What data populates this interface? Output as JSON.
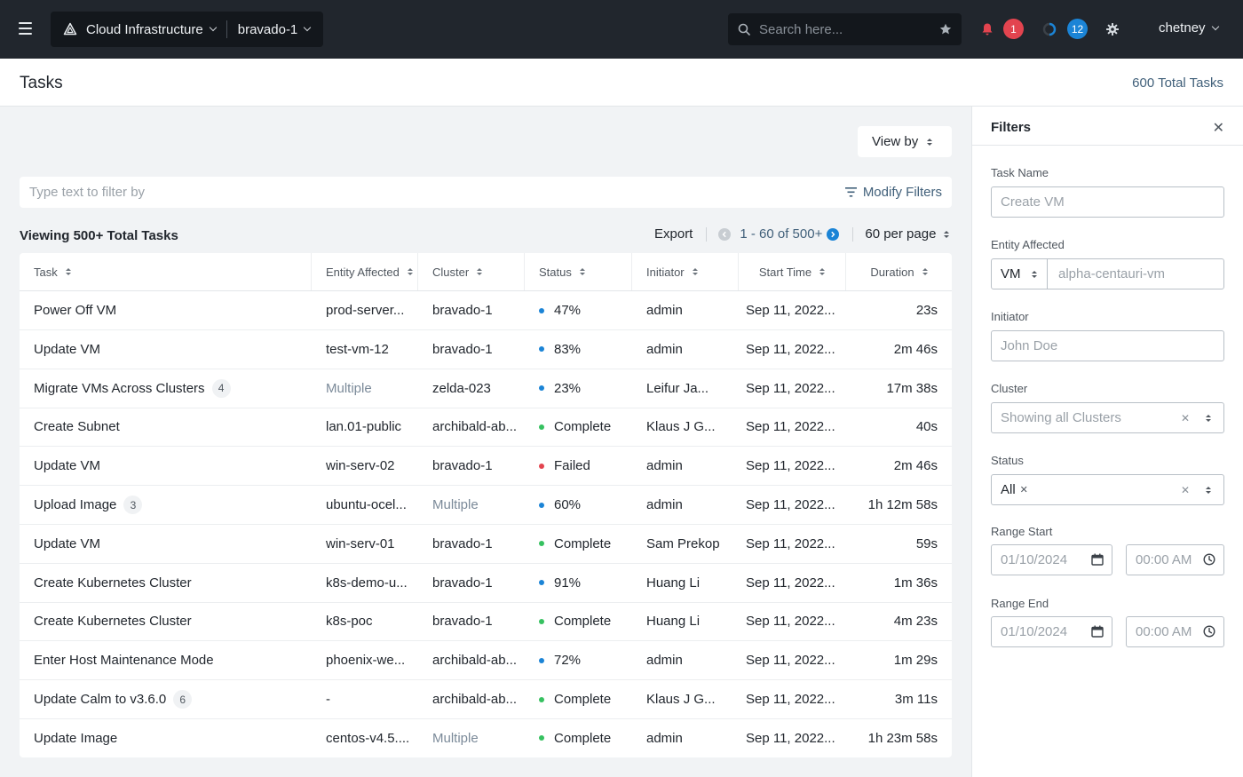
{
  "topbar": {
    "context_label": "Cloud Infrastructure",
    "cluster_label": "bravado-1",
    "search_placeholder": "Search here...",
    "alerts_count": "1",
    "tasks_count": "12",
    "username": "chetney"
  },
  "page": {
    "title": "Tasks",
    "total_tasks": "600 Total Tasks"
  },
  "toolbar": {
    "view_by": "View by",
    "filter_placeholder": "Type text to filter by",
    "modify_filters": "Modify Filters",
    "viewing": "Viewing 500+ Total Tasks",
    "export": "Export",
    "range": "1 - 60 of 500+",
    "per_page": "60 per page"
  },
  "table": {
    "columns": [
      "Task",
      "Entity Affected",
      "Cluster",
      "Status",
      "Initiator",
      "Start Time",
      "Duration"
    ],
    "rows": [
      {
        "task": "Power Off VM",
        "count": "",
        "entity": "prod-server...",
        "entity_muted": false,
        "cluster": "bravado-1",
        "cluster_muted": false,
        "status": "47%",
        "status_color": "#1b84d6",
        "initiator": "admin",
        "start": "Sep 11, 2022...",
        "duration": "23s"
      },
      {
        "task": "Update VM",
        "count": "",
        "entity": "test-vm-12",
        "entity_muted": false,
        "cluster": "bravado-1",
        "cluster_muted": false,
        "status": "83%",
        "status_color": "#1b84d6",
        "initiator": "admin",
        "start": "Sep 11, 2022...",
        "duration": "2m 46s"
      },
      {
        "task": "Migrate VMs Across Clusters",
        "count": "4",
        "entity": "Multiple",
        "entity_muted": true,
        "cluster": "zelda-023",
        "cluster_muted": false,
        "status": "23%",
        "status_color": "#1b84d6",
        "initiator": "Leifur Ja...",
        "start": "Sep 11, 2022...",
        "duration": "17m 38s"
      },
      {
        "task": "Create Subnet",
        "count": "",
        "entity": "lan.01-public",
        "entity_muted": false,
        "cluster": "archibald-ab...",
        "cluster_muted": false,
        "status": "Complete",
        "status_color": "#36c160",
        "initiator": "Klaus J G...",
        "start": "Sep 11, 2022...",
        "duration": "40s"
      },
      {
        "task": "Update VM",
        "count": "",
        "entity": "win-serv-02",
        "entity_muted": false,
        "cluster": "bravado-1",
        "cluster_muted": false,
        "status": "Failed",
        "status_color": "#e3444f",
        "initiator": "admin",
        "start": "Sep 11, 2022...",
        "duration": "2m 46s"
      },
      {
        "task": "Upload Image",
        "count": "3",
        "entity": "ubuntu-ocel...",
        "entity_muted": false,
        "cluster": "Multiple",
        "cluster_muted": true,
        "status": "60%",
        "status_color": "#1b84d6",
        "initiator": "admin",
        "start": "Sep 11, 2022...",
        "duration": "1h 12m 58s"
      },
      {
        "task": "Update VM",
        "count": "",
        "entity": "win-serv-01",
        "entity_muted": false,
        "cluster": "bravado-1",
        "cluster_muted": false,
        "status": "Complete",
        "status_color": "#36c160",
        "initiator": "Sam Prekop",
        "start": "Sep 11, 2022...",
        "duration": "59s"
      },
      {
        "task": "Create Kubernetes Cluster",
        "count": "",
        "entity": "k8s-demo-u...",
        "entity_muted": false,
        "cluster": "bravado-1",
        "cluster_muted": false,
        "status": "91%",
        "status_color": "#1b84d6",
        "initiator": "Huang Li",
        "start": "Sep 11, 2022...",
        "duration": "1m 36s"
      },
      {
        "task": "Create Kubernetes Cluster",
        "count": "",
        "entity": "k8s-poc",
        "entity_muted": false,
        "cluster": "bravado-1",
        "cluster_muted": false,
        "status": "Complete",
        "status_color": "#36c160",
        "initiator": "Huang Li",
        "start": "Sep 11, 2022...",
        "duration": "4m 23s"
      },
      {
        "task": "Enter Host Maintenance Mode",
        "count": "",
        "entity": "phoenix-we...",
        "entity_muted": false,
        "cluster": "archibald-ab...",
        "cluster_muted": false,
        "status": "72%",
        "status_color": "#1b84d6",
        "initiator": "admin",
        "start": "Sep 11, 2022...",
        "duration": "1m 29s"
      },
      {
        "task": "Update Calm to v3.6.0",
        "count": "6",
        "entity": "-",
        "entity_muted": false,
        "cluster": "archibald-ab...",
        "cluster_muted": false,
        "status": "Complete",
        "status_color": "#36c160",
        "initiator": "Klaus J G...",
        "start": "Sep 11, 2022...",
        "duration": "3m 11s"
      },
      {
        "task": "Update Image",
        "count": "",
        "entity": "centos-v4.5....",
        "entity_muted": false,
        "cluster": "Multiple",
        "cluster_muted": true,
        "status": "Complete",
        "status_color": "#36c160",
        "initiator": "admin",
        "start": "Sep 11, 2022...",
        "duration": "1h 23m 58s"
      }
    ]
  },
  "filters": {
    "title": "Filters",
    "task_name_label": "Task Name",
    "task_name_placeholder": "Create VM",
    "entity_label": "Entity Affected",
    "entity_type": "VM",
    "entity_placeholder": "alpha-centauri-vm",
    "initiator_label": "Initiator",
    "initiator_placeholder": "John Doe",
    "cluster_label": "Cluster",
    "cluster_placeholder": "Showing all Clusters",
    "status_label": "Status",
    "status_tag": "All",
    "range_start_label": "Range Start",
    "range_start_date": "01/10/2024",
    "range_start_time": "00:00 AM",
    "range_end_label": "Range End",
    "range_end_date": "01/10/2024",
    "range_end_time": "00:00 AM"
  },
  "colors": {
    "topbar_bg": "#21262d",
    "alert_badge": "#e3444f",
    "task_badge": "#1b84d6",
    "accent_link": "#41607a"
  }
}
